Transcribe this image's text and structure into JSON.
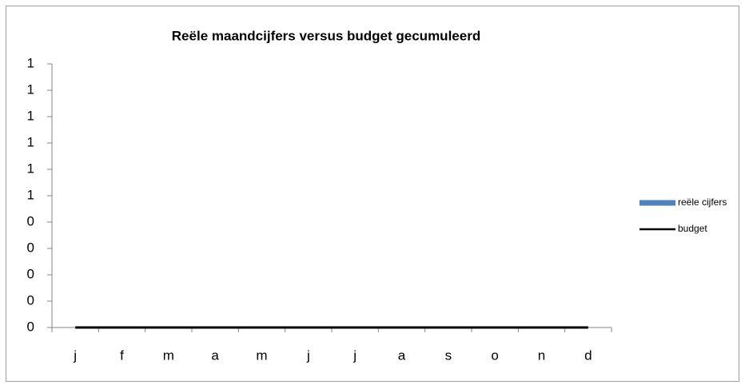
{
  "chart_data": {
    "type": "bar_line",
    "title": "Reële maandcijfers versus budget gecumuleerd",
    "categories": [
      "j",
      "f",
      "m",
      "a",
      "m",
      "j",
      "j",
      "a",
      "s",
      "o",
      "n",
      "d"
    ],
    "series": [
      {
        "name": "reële cijfers",
        "type": "bar",
        "color": "#4f81bd",
        "values": [
          0,
          0,
          0,
          0,
          0,
          0,
          0,
          0,
          0,
          0,
          0,
          0
        ]
      },
      {
        "name": "budget",
        "type": "line",
        "color": "#000000",
        "values": [
          0,
          0,
          0,
          0,
          0,
          0,
          0,
          0,
          0,
          0,
          0,
          0
        ]
      }
    ],
    "ylim": [
      0,
      1
    ],
    "yticks": [
      {
        "value": 0,
        "label": "0"
      },
      {
        "value": 0.1,
        "label": "0"
      },
      {
        "value": 0.2,
        "label": "0"
      },
      {
        "value": 0.3,
        "label": "0"
      },
      {
        "value": 0.4,
        "label": "0"
      },
      {
        "value": 0.5,
        "label": "1"
      },
      {
        "value": 0.6,
        "label": "1"
      },
      {
        "value": 0.7,
        "label": "1"
      },
      {
        "value": 0.8,
        "label": "1"
      },
      {
        "value": 0.9,
        "label": "1"
      },
      {
        "value": 1,
        "label": "1"
      }
    ],
    "grid": false,
    "legend": "right"
  }
}
